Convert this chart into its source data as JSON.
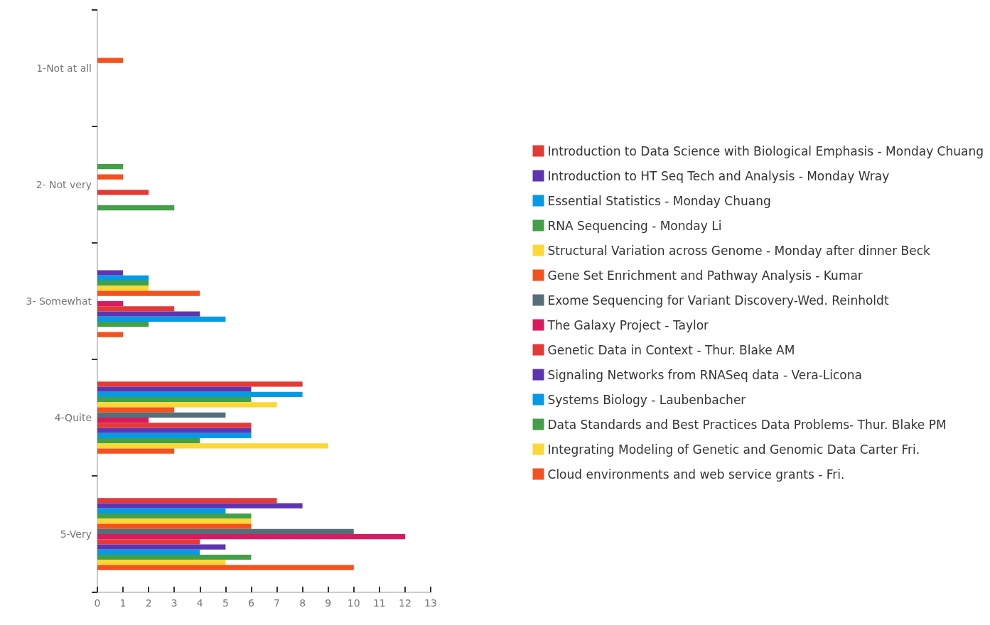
{
  "chart_data": {
    "type": "bar",
    "orientation": "horizontal",
    "categories": [
      "1-Not at all",
      "2- Not very",
      "3- Somewhat",
      "4-Quite",
      "5-Very"
    ],
    "xlim": [
      0,
      13
    ],
    "xticks": [
      0,
      1,
      2,
      3,
      4,
      5,
      6,
      7,
      8,
      9,
      10,
      11,
      12,
      13
    ],
    "grid": false,
    "legend": "right",
    "series": [
      {
        "name": "Introduction to Data Science with Biological Emphasis - Monday Chuang",
        "color": "#e53935",
        "values": [
          0,
          0,
          0,
          8,
          7
        ]
      },
      {
        "name": "Introduction to HT Seq Tech and Analysis - Monday Wray",
        "color": "#5e35b1",
        "values": [
          0,
          0,
          1,
          6,
          8
        ]
      },
      {
        "name": "Essential Statistics - Monday Chuang",
        "color": "#039be5",
        "values": [
          0,
          0,
          2,
          8,
          5
        ]
      },
      {
        "name": "RNA Sequencing - Monday Li",
        "color": "#43a047",
        "values": [
          0,
          1,
          2,
          6,
          6
        ]
      },
      {
        "name": "Structural Variation across Genome - Monday after dinner Beck",
        "color": "#fdd835",
        "values": [
          0,
          0,
          2,
          7,
          6
        ]
      },
      {
        "name": "Gene Set Enrichment and Pathway Analysis - Kumar",
        "color": "#f4511e",
        "values": [
          1,
          1,
          4,
          3,
          6
        ]
      },
      {
        "name": "Exome Sequencing for Variant Discovery-Wed. Reinholdt",
        "color": "#546e7a",
        "values": [
          0,
          0,
          0,
          5,
          10
        ]
      },
      {
        "name": "The Galaxy Project - Taylor",
        "color": "#d81b60",
        "values": [
          0,
          0,
          1,
          2,
          12
        ]
      },
      {
        "name": "Genetic Data in Context - Thur. Blake AM",
        "color": "#e53935",
        "values": [
          0,
          2,
          3,
          6,
          4
        ]
      },
      {
        "name": "Signaling Networks from RNASeq data - Vera-Licona",
        "color": "#5e35b1",
        "values": [
          0,
          0,
          4,
          6,
          5
        ]
      },
      {
        "name": "Systems Biology - Laubenbacher",
        "color": "#039be5",
        "values": [
          0,
          0,
          5,
          6,
          4
        ]
      },
      {
        "name": "Data Standards and Best Practices Data Problems- Thur. Blake PM",
        "color": "#43a047",
        "values": [
          0,
          3,
          2,
          4,
          6
        ]
      },
      {
        "name": "Integrating Modeling of Genetic and Genomic Data Carter Fri.",
        "color": "#fdd835",
        "values": [
          0,
          0,
          0,
          9,
          5
        ]
      },
      {
        "name": "Cloud environments and web service grants - Fri.",
        "color": "#f4511e",
        "values": [
          0,
          0,
          1,
          3,
          10
        ]
      }
    ]
  }
}
